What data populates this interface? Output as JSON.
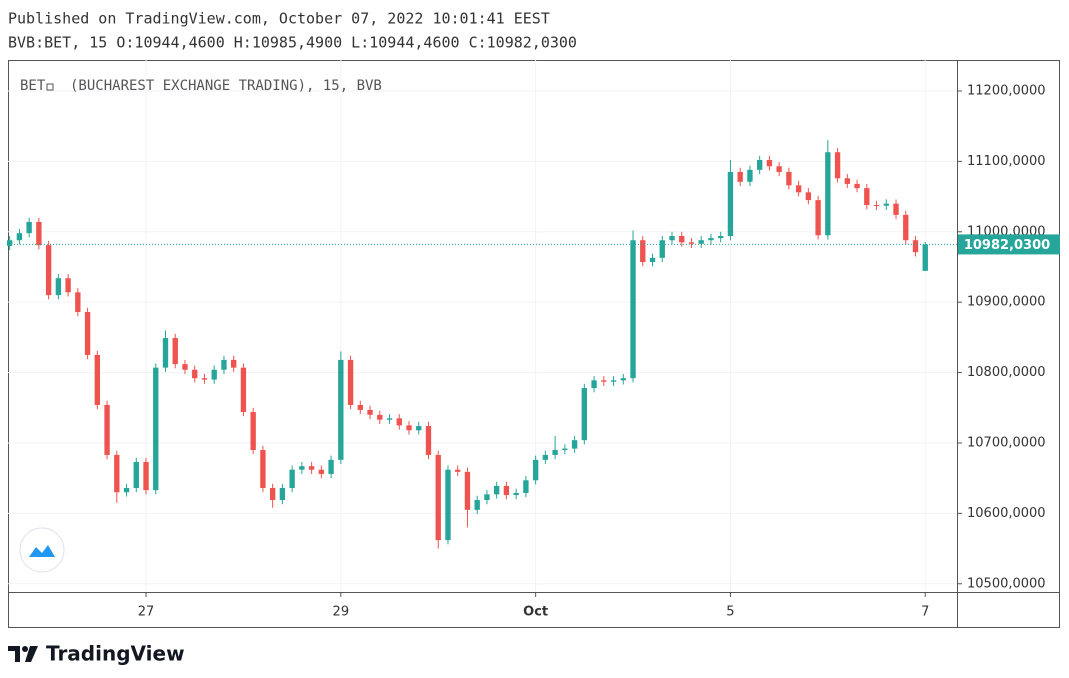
{
  "header": {
    "published": "Published on TradingView.com, October 07, 2022 10:01:41 EEST",
    "ohlc": "BVB:BET, 15 O:10944,4600 H:10985,4900 L:10944,4600 C:10982,0300"
  },
  "footer": {
    "brand": "TradingView"
  },
  "chart_data": {
    "type": "candlestick",
    "symbol": "BET",
    "legend": "(BUCHAREST EXCHANGE TRADING), 15, BVB",
    "up_color": "#26a69a",
    "down_color": "#ef5350",
    "grid": true,
    "xlim": [
      -0.417,
      9.326
    ],
    "xticks": [
      {
        "value": 1,
        "label": "27"
      },
      {
        "value": 3,
        "label": "29"
      },
      {
        "value": 5,
        "label": "Oct"
      },
      {
        "value": 7,
        "label": "5"
      },
      {
        "value": 9,
        "label": "7"
      }
    ],
    "ylim": [
      10488.3,
      11244
    ],
    "yticks": [
      {
        "value": 10500,
        "label": "10500,0000"
      },
      {
        "value": 10600,
        "label": "10600,0000"
      },
      {
        "value": 10700,
        "label": "10700,0000"
      },
      {
        "value": 10800,
        "label": "10800,0000"
      },
      {
        "value": 10900,
        "label": "10900,0000"
      },
      {
        "value": 11000,
        "label": "11000,0000"
      },
      {
        "value": 11100,
        "label": "11100,0000"
      },
      {
        "value": 11200,
        "label": "11200,0000"
      }
    ],
    "last_value_label": "10982,0300",
    "x": [
      -0.4,
      -0.3,
      -0.2,
      -0.1,
      0,
      0.1,
      0.2,
      0.3,
      0.4,
      0.5,
      0.6,
      0.7,
      0.8,
      0.9,
      1,
      1.1,
      1.2,
      1.3,
      1.4,
      1.5,
      1.6,
      1.7,
      1.8,
      1.9,
      2,
      2.1,
      2.2,
      2.3,
      2.4,
      2.5,
      2.6,
      2.7,
      2.8,
      2.9,
      3,
      3.1,
      3.2,
      3.3,
      3.4,
      3.5,
      3.6,
      3.7,
      3.8,
      3.9,
      4,
      4.1,
      4.2,
      4.3,
      4.4,
      4.5,
      4.6,
      4.7,
      4.8,
      4.9,
      5,
      5.1,
      5.2,
      5.3,
      5.4,
      5.5,
      5.6,
      5.7,
      5.8,
      5.9,
      6,
      6.1,
      6.2,
      6.3,
      6.4,
      6.5,
      6.6,
      6.7,
      6.8,
      6.9,
      7,
      7.1,
      7.2,
      7.3,
      7.4,
      7.5,
      7.6,
      7.7,
      7.8,
      7.9,
      8,
      8.1,
      8.2,
      8.3,
      8.4,
      8.5,
      8.6,
      8.7,
      8.8,
      8.9,
      9
    ],
    "open": [
      10980,
      10988,
      10998,
      11014,
      10981,
      10910,
      10934,
      10914,
      10886,
      10825,
      10754,
      10683,
      10630,
      10636,
      10673,
      10633,
      10807,
      10849,
      10812,
      10804,
      10792,
      10790,
      10804,
      10818,
      10807,
      10744,
      10690,
      10636,
      10619,
      10636,
      10662,
      10667,
      10662,
      10656,
      10676,
      10818,
      10754,
      10747,
      10740,
      10733,
      10735,
      10725,
      10718,
      10724,
      10683,
      10562,
      10662,
      10659,
      10605,
      10619,
      10627,
      10639,
      10626,
      10629,
      10647,
      10676,
      10683,
      10690,
      10692,
      10704,
      10778,
      10789,
      10787,
      10789,
      10792,
      10988,
      10957,
      10963,
      10988,
      10994,
      10985,
      10983,
      10988,
      10991,
      10994,
      11085,
      11071,
      11088,
      11102,
      11093,
      11085,
      11066,
      11056,
      11045,
      10995,
      11113,
      11076,
      11068,
      11062,
      11038,
      11037,
      11040,
      11024,
      10988,
      10944.46
    ],
    "high": [
      10994,
      11004,
      11020,
      11020,
      10987,
      10940,
      10940,
      10920,
      10892,
      10831,
      10760,
      10689,
      10642,
      10679,
      10679,
      10813,
      10860,
      10855,
      10818,
      10810,
      10798,
      10810,
      10824,
      10824,
      10813,
      10750,
      10696,
      10642,
      10642,
      10668,
      10673,
      10673,
      10668,
      10682,
      10830,
      10824,
      10760,
      10753,
      10746,
      10741,
      10741,
      10731,
      10730,
      10730,
      10689,
      10668,
      10668,
      10665,
      10625,
      10633,
      10645,
      10645,
      10635,
      10653,
      10682,
      10689,
      10710,
      10698,
      10710,
      10784,
      10795,
      10795,
      10795,
      10798,
      11002,
      10994,
      10969,
      10994,
      11000,
      11000,
      10991,
      10994,
      10997,
      11000,
      11102,
      11091,
      11094,
      11108,
      11108,
      11099,
      11091,
      11072,
      11062,
      11051,
      11130,
      11119,
      11082,
      11074,
      11068,
      11044,
      11046,
      11046,
      11030,
      10994,
      10985.49
    ],
    "low": [
      10974,
      10982,
      10992,
      10975,
      10904,
      10904,
      10908,
      10880,
      10819,
      10748,
      10677,
      10615,
      10624,
      10630,
      10627,
      10627,
      10801,
      10806,
      10798,
      10786,
      10784,
      10784,
      10798,
      10801,
      10738,
      10684,
      10630,
      10608,
      10613,
      10630,
      10656,
      10656,
      10650,
      10650,
      10670,
      10748,
      10741,
      10734,
      10727,
      10727,
      10719,
      10712,
      10712,
      10677,
      10550,
      10556,
      10653,
      10580,
      10599,
      10613,
      10621,
      10620,
      10620,
      10623,
      10641,
      10670,
      10677,
      10684,
      10686,
      10698,
      10772,
      10781,
      10781,
      10783,
      10786,
      10951,
      10951,
      10957,
      10982,
      10979,
      10977,
      10977,
      10982,
      10985,
      10988,
      11065,
      11065,
      11082,
      11087,
      11079,
      11060,
      11050,
      11039,
      10989,
      10989,
      11070,
      11062,
      11056,
      11032,
      11031,
      11031,
      11018,
      10982,
      10965,
      10944.46
    ],
    "close": [
      10988,
      10998,
      11014,
      10981,
      10910,
      10934,
      10914,
      10886,
      10825,
      10754,
      10683,
      10630,
      10636,
      10673,
      10633,
      10807,
      10849,
      10812,
      10804,
      10792,
      10790,
      10804,
      10818,
      10807,
      10744,
      10690,
      10636,
      10619,
      10636,
      10662,
      10667,
      10662,
      10656,
      10676,
      10818,
      10754,
      10747,
      10740,
      10733,
      10735,
      10725,
      10718,
      10724,
      10683,
      10562,
      10662,
      10659,
      10605,
      10619,
      10627,
      10639,
      10626,
      10629,
      10647,
      10676,
      10683,
      10690,
      10692,
      10704,
      10778,
      10789,
      10787,
      10789,
      10792,
      10988,
      10957,
      10963,
      10988,
      10994,
      10985,
      10983,
      10988,
      10991,
      10994,
      11085,
      11071,
      11088,
      11102,
      11093,
      11085,
      11066,
      11056,
      11045,
      10995,
      11113,
      11076,
      11068,
      11062,
      11038,
      11037,
      11040,
      11024,
      10988,
      10971,
      10982.03
    ]
  }
}
